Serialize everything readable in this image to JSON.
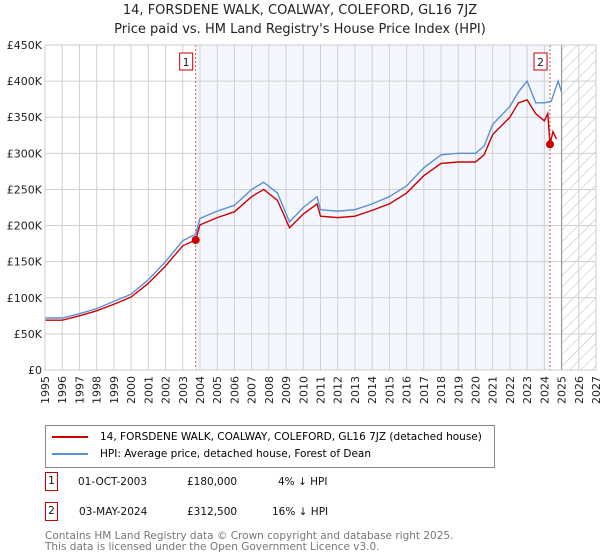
{
  "title": "14, FORSDENE WALK, COALWAY, COLEFORD, GL16 7JZ",
  "subtitle": "Price paid vs. HM Land Registry's House Price Index (HPI)",
  "chart_data": {
    "type": "line",
    "xlim": [
      1995,
      2027
    ],
    "ylim": [
      0,
      450000
    ],
    "yticks": [
      0,
      50000,
      100000,
      150000,
      200000,
      250000,
      300000,
      350000,
      400000,
      450000
    ],
    "ytick_labels": [
      "£0",
      "£50K",
      "£100K",
      "£150K",
      "£200K",
      "£250K",
      "£300K",
      "£350K",
      "£400K",
      "£450K"
    ],
    "xticks": [
      1995,
      1996,
      1997,
      1998,
      1999,
      2000,
      2001,
      2002,
      2003,
      2004,
      2005,
      2006,
      2007,
      2008,
      2009,
      2010,
      2011,
      2012,
      2013,
      2014,
      2015,
      2016,
      2017,
      2018,
      2019,
      2020,
      2021,
      2022,
      2023,
      2024,
      2025,
      2026,
      2027
    ],
    "grid": true,
    "series": [
      {
        "name": "14, FORSDENE WALK, COALWAY, COLEFORD, GL16 7JZ (detached house)",
        "color": "#cc0000",
        "x": [
          1995,
          1996,
          1997,
          1998,
          1999,
          2000,
          2001,
          2002,
          2003,
          2003.75,
          2004,
          2005,
          2006,
          2007,
          2007.7,
          2008.5,
          2009.2,
          2010,
          2010.8,
          2011,
          2012,
          2013,
          2014,
          2015,
          2016,
          2017,
          2018,
          2019,
          2020,
          2020.5,
          2021,
          2022,
          2022.5,
          2023,
          2023.5,
          2024,
          2024.2,
          2024.33,
          2024.5,
          2024.7
        ],
        "y": [
          69000,
          69000,
          75000,
          82000,
          91000,
          101000,
          120000,
          144000,
          172000,
          180000,
          201000,
          211000,
          219000,
          240000,
          250000,
          235000,
          197000,
          216000,
          230000,
          213000,
          211000,
          213000,
          221000,
          230000,
          245000,
          269000,
          286000,
          288000,
          288000,
          298000,
          326000,
          350000,
          370000,
          374000,
          355000,
          345000,
          355000,
          312500,
          330000,
          320000
        ]
      },
      {
        "name": "HPI: Average price, detached house, Forest of Dean",
        "color": "#5b8fd6",
        "x": [
          1995,
          1996,
          1997,
          1998,
          1999,
          2000,
          2001,
          2002,
          2003,
          2003.75,
          2004,
          2005,
          2006,
          2007,
          2007.7,
          2008.5,
          2009.2,
          2010,
          2010.8,
          2011,
          2012,
          2013,
          2014,
          2015,
          2016,
          2017,
          2018,
          2019,
          2020,
          2020.5,
          2021,
          2022,
          2022.5,
          2023,
          2023.5,
          2024,
          2024.4,
          2024.8,
          2025
        ],
        "y": [
          72000,
          72000,
          78000,
          85000,
          95000,
          105000,
          125000,
          150000,
          179000,
          188000,
          210000,
          220000,
          228000,
          250000,
          260000,
          245000,
          205000,
          225000,
          240000,
          222000,
          220000,
          222000,
          230000,
          240000,
          255000,
          280000,
          298000,
          300000,
          300000,
          310000,
          340000,
          365000,
          385000,
          400000,
          370000,
          370000,
          372000,
          400000,
          385000
        ]
      }
    ],
    "annotations": [
      {
        "label": "1",
        "x": 2003.75,
        "y": 180000
      },
      {
        "label": "2",
        "x": 2024.33,
        "y": 312500
      }
    ],
    "forecast_hatch_from": 2025
  },
  "legend": {
    "items": [
      "14, FORSDENE WALK, COALWAY, COLEFORD, GL16 7JZ (detached house)",
      "HPI: Average price, detached house, Forest of Dean"
    ]
  },
  "transactions": [
    {
      "num": "1",
      "date": "01-OCT-2003",
      "price": "£180,000",
      "hpi": "4% ↓ HPI"
    },
    {
      "num": "2",
      "date": "03-MAY-2024",
      "price": "£312,500",
      "hpi": "16% ↓ HPI"
    }
  ],
  "footer": [
    "Contains HM Land Registry data © Crown copyright and database right 2025.",
    "This data is licensed under the Open Government Licence v3.0."
  ]
}
